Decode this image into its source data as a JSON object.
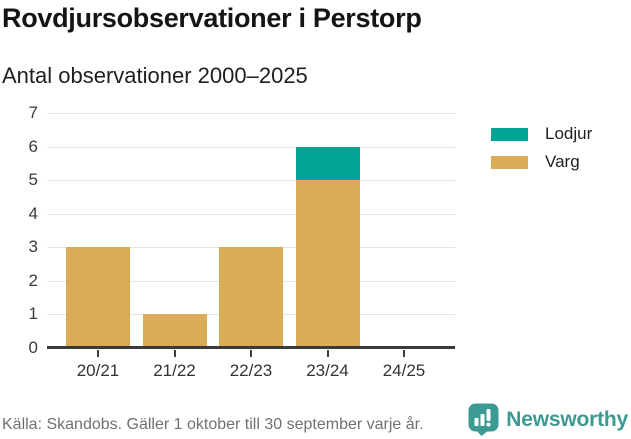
{
  "header": {
    "title": "Rovdjursobservationer i Perstorp",
    "subtitle": "Antal observationer 2000–2025"
  },
  "chart_data": {
    "type": "bar",
    "stacked": true,
    "title": "Rovdjursobservationer i Perstorp",
    "subtitle": "Antal observationer 2000–2025",
    "categories": [
      "20/21",
      "21/22",
      "22/23",
      "23/24",
      "24/25"
    ],
    "series": [
      {
        "name": "Varg",
        "color": "#d9ac57",
        "values": [
          3,
          1,
          3,
          5,
          0
        ]
      },
      {
        "name": "Lodjur",
        "color": "#00a598",
        "values": [
          0,
          0,
          0,
          1,
          0
        ]
      }
    ],
    "legend": [
      {
        "label": "Lodjur",
        "color": "#00a598"
      },
      {
        "label": "Varg",
        "color": "#d9ac57"
      }
    ],
    "legend_position": "right",
    "xlabel": "",
    "ylabel": "",
    "ylim": [
      0,
      7
    ],
    "yticks": [
      0,
      1,
      2,
      3,
      4,
      5,
      6,
      7
    ],
    "grid": true
  },
  "footer": {
    "source": "Källa: Skandobs. Gäller 1 oktober till 30 september varje år.",
    "brand": "Newsworthy",
    "brand_color": "#3d9a93",
    "logo_icon": "newsworthy-chart-bubble-icon"
  },
  "colors": {
    "lodjur": "#00a598",
    "varg": "#d9ac57",
    "axis": "#3b3b3b",
    "gridline": "#e4e4e4",
    "muted_text": "#6e7175"
  }
}
